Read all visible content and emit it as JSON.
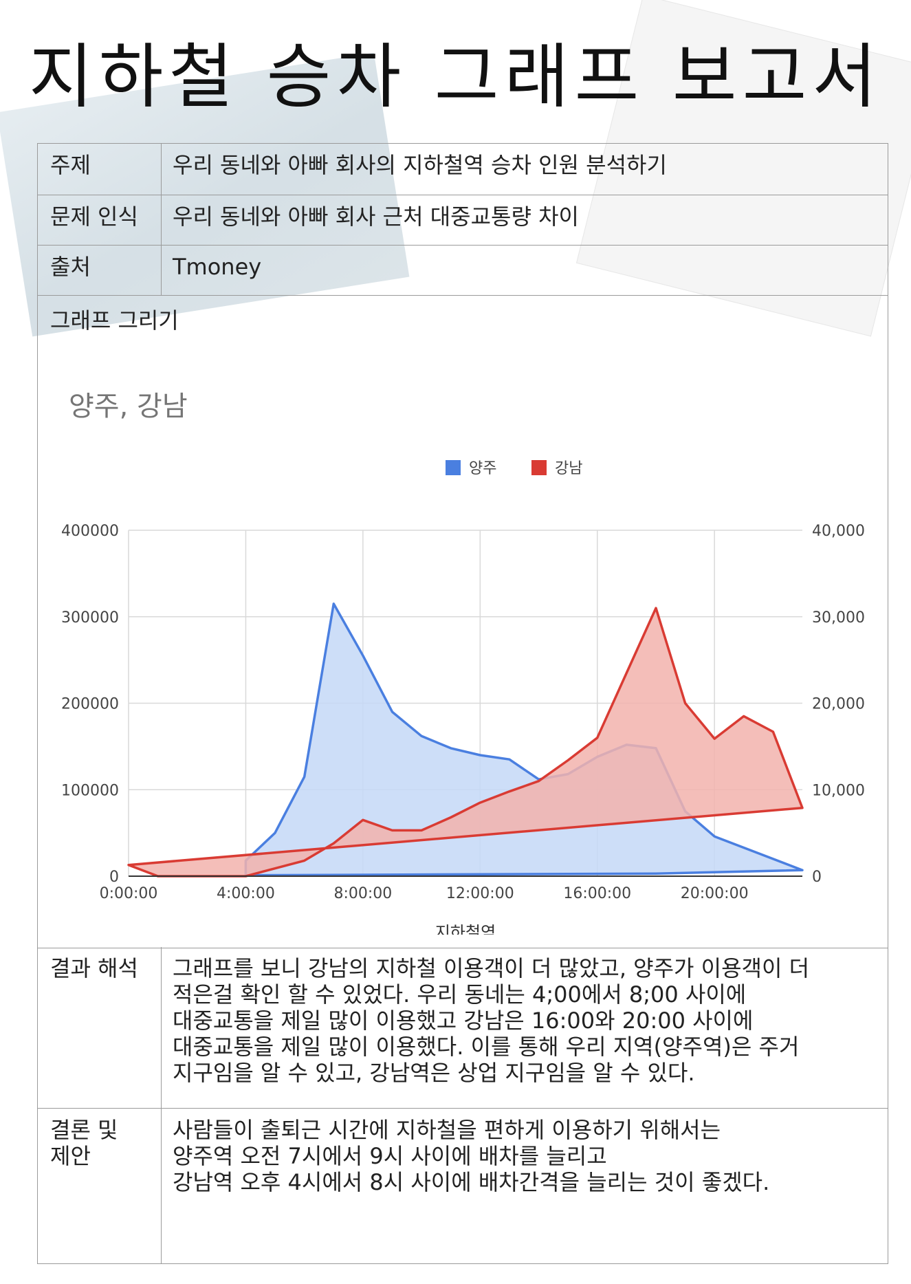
{
  "document": {
    "title": "지하철 승차 그래프 보고서"
  },
  "rows": {
    "topic": {
      "label": "주제",
      "value": "우리 동네와 아빠 회사의 지하철역 승차 인원 분석하기"
    },
    "problem": {
      "label": "문제 인식",
      "value": "우리 동네와 아빠 회사 근처 대중교통량 차이"
    },
    "source": {
      "label": "출처",
      "value": "Tmoney"
    },
    "chart_section": {
      "label": "그래프 그리기"
    },
    "result": {
      "label": "결과 해석",
      "lines": [
        "그래프를 보니 강남의 지하철 이용객이 더 많았고, 양주가 이용객이 더",
        "적은걸 확인 할 수 있었다. 우리 동네는 4;00에서 8;00 사이에",
        "대중교통을 제일 많이 이용했고 강남은 16:00와 20:00 사이에",
        "대중교통을 제일 많이 이용했다. 이를 통해 우리 지역(양주역)은 주거",
        "지구임을 알 수 있고, 강남역은 상업 지구임을 알 수 있다."
      ]
    },
    "conclusion": {
      "label_lines": [
        "결론 및",
        "제안"
      ],
      "lines": [
        "사람들이 출퇴근 시간에 지하철을 편하게 이용하기 위해서는",
        "양주역 오전 7시에서 9시 사이에 배차를 늘리고",
        "강남역 오후 4시에서 8시 사이에 배차간격을 늘리는 것이 좋겠다."
      ]
    }
  },
  "chart_data": {
    "type": "area",
    "title": "양주, 강남",
    "xlabel": "지하철역",
    "x_ticks": [
      "0:00:00",
      "4:00:00",
      "8:00:00",
      "12:00:00",
      "16:00:00",
      "20:00:00"
    ],
    "y_left_ticks": [
      "400000",
      "300000",
      "200000",
      "100000",
      "0"
    ],
    "y_right_ticks": [
      "40,000",
      "30,000",
      "20,000",
      "10,000",
      "0"
    ],
    "y_left_range": [
      0,
      400000
    ],
    "y_right_range": [
      0,
      40000
    ],
    "x_range_hours": [
      0,
      23
    ],
    "legend_position": "top-center",
    "grid": true,
    "series": [
      {
        "name": "양주",
        "color": "#4a7fe0",
        "fill": "#c4d8f7",
        "axis": "left",
        "points": [
          [
            4,
            18000
          ],
          [
            5,
            50000
          ],
          [
            6,
            115000
          ],
          [
            7,
            315000
          ],
          [
            8,
            255000
          ],
          [
            9,
            190000
          ],
          [
            10,
            162000
          ],
          [
            11,
            148000
          ],
          [
            12,
            140000
          ],
          [
            13,
            135000
          ],
          [
            14,
            112000
          ],
          [
            15,
            118000
          ],
          [
            16,
            138000
          ],
          [
            17,
            152000
          ],
          [
            18,
            148000
          ],
          [
            19,
            75000
          ],
          [
            20,
            46000
          ],
          [
            23,
            7000
          ],
          [
            18,
            3000
          ],
          [
            4,
            1000
          ]
        ]
      },
      {
        "name": "강남",
        "color": "#d93b33",
        "fill": "#f2b3ad",
        "axis": "right",
        "points": [
          [
            0,
            1300
          ],
          [
            1,
            0
          ],
          [
            4,
            0
          ],
          [
            5,
            900
          ],
          [
            6,
            1800
          ],
          [
            7,
            3800
          ],
          [
            8,
            6500
          ],
          [
            9,
            5300
          ],
          [
            10,
            5300
          ],
          [
            11,
            6800
          ],
          [
            12,
            8500
          ],
          [
            13,
            9800
          ],
          [
            14,
            11000
          ],
          [
            15,
            13400
          ],
          [
            16,
            16000
          ],
          [
            17,
            23500
          ],
          [
            18,
            31000
          ],
          [
            19,
            20000
          ],
          [
            20,
            15900
          ],
          [
            21,
            18500
          ],
          [
            22,
            16700
          ],
          [
            23,
            7900
          ],
          [
            0,
            1300
          ]
        ]
      }
    ]
  }
}
